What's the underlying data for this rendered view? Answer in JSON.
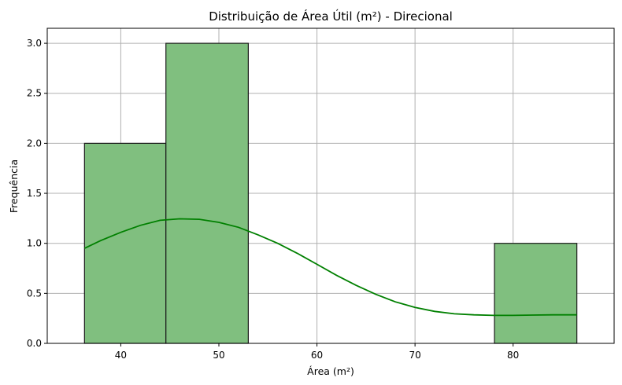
{
  "chart_data": {
    "type": "bar",
    "title": "Distribuição de Área Útil (m²) - Direcional",
    "xlabel": "Área (m²)",
    "ylabel": "Frequência",
    "bins": [
      {
        "x0": 36.3,
        "x1": 44.6,
        "count": 2
      },
      {
        "x0": 44.6,
        "x1": 53.0,
        "count": 3
      },
      {
        "x0": 53.0,
        "x1": 61.4,
        "count": 0
      },
      {
        "x0": 61.4,
        "x1": 69.8,
        "count": 0
      },
      {
        "x0": 69.8,
        "x1": 78.1,
        "count": 0
      },
      {
        "x0": 78.1,
        "x1": 86.5,
        "count": 1
      }
    ],
    "kde": {
      "x": [
        36.3,
        38,
        40,
        42,
        44,
        46,
        48,
        50,
        52,
        54,
        56,
        58,
        60,
        62,
        64,
        66,
        68,
        70,
        72,
        74,
        76,
        78,
        80,
        82,
        84,
        86.5
      ],
      "y": [
        0.95,
        1.03,
        1.11,
        1.18,
        1.23,
        1.245,
        1.24,
        1.21,
        1.16,
        1.085,
        1.0,
        0.9,
        0.79,
        0.68,
        0.58,
        0.49,
        0.415,
        0.36,
        0.32,
        0.295,
        0.285,
        0.28,
        0.28,
        0.283,
        0.285,
        0.285
      ]
    },
    "xlim": [
      32.5,
      90.3
    ],
    "ylim": [
      0,
      3.15
    ],
    "xticks": [
      "40",
      "50",
      "60",
      "70",
      "80"
    ],
    "yticks": [
      "0.0",
      "0.5",
      "1.0",
      "1.5",
      "2.0",
      "2.5",
      "3.0"
    ],
    "grid": true,
    "colors": {
      "bar_fill": "#80bf7f",
      "bar_edge": "#1a1a1a",
      "kde_line": "#008000",
      "grid": "#b0b0b0"
    }
  }
}
